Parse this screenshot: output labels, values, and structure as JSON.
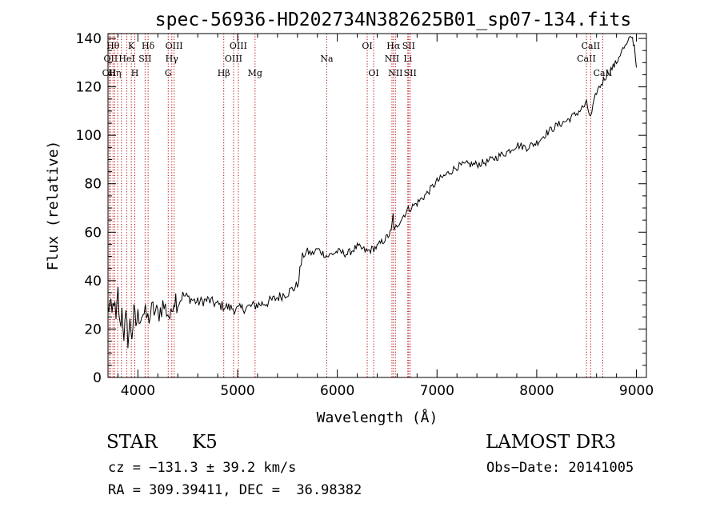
{
  "chart_data": {
    "type": "line",
    "title": "spec-56936-HD202734N382625B01_sp07-134.fits",
    "xlabel": "Wavelength (Å)",
    "ylabel": "Flux (relative)",
    "xlim": [
      3700,
      9100
    ],
    "ylim": [
      0,
      142
    ],
    "xticks": [
      4000,
      5000,
      6000,
      7000,
      8000,
      9000
    ],
    "xtick_labels": [
      "4000",
      "5000",
      "6000",
      "7000",
      "8000",
      "9000"
    ],
    "yticks": [
      0,
      20,
      40,
      60,
      80,
      100,
      120,
      140
    ],
    "ytick_labels": [
      "0",
      "20",
      "40",
      "60",
      "80",
      "100",
      "120",
      "140"
    ],
    "grid": false,
    "series": [
      {
        "color": "#000000",
        "x": [
          3700,
          3720,
          3740,
          3760,
          3780,
          3800,
          3820,
          3840,
          3860,
          3880,
          3900,
          3920,
          3940,
          3960,
          3980,
          4000,
          4050,
          4100,
          4150,
          4200,
          4250,
          4300,
          4330,
          4350,
          4380,
          4400,
          4450,
          4500,
          4600,
          4700,
          4800,
          4900,
          5000,
          5100,
          5200,
          5300,
          5400,
          5500,
          5600,
          5650,
          5700,
          5750,
          5800,
          5900,
          6000,
          6100,
          6200,
          6300,
          6400,
          6500,
          6540,
          6560,
          6570,
          6600,
          6700,
          6800,
          6900,
          7000,
          7100,
          7200,
          7300,
          7400,
          7500,
          7600,
          7700,
          7800,
          7900,
          8000,
          8100,
          8200,
          8300,
          8400,
          8500,
          8540,
          8600,
          8660,
          8700,
          8800,
          8850,
          8900,
          8950,
          8980,
          9000
        ],
        "y": [
          28,
          30,
          25,
          33,
          22,
          35,
          20,
          28,
          18,
          24,
          16,
          22,
          18,
          26,
          22,
          25,
          27,
          24,
          28,
          26,
          30,
          27,
          24,
          32,
          33,
          30,
          34,
          33,
          31,
          32,
          30,
          29,
          28,
          29,
          30,
          31,
          33,
          35,
          38,
          50,
          52,
          51,
          53,
          50,
          52,
          51,
          54,
          52,
          54,
          58,
          60,
          67,
          60,
          63,
          69,
          72,
          76,
          81,
          84,
          87,
          88,
          88,
          89,
          91,
          93,
          96,
          95,
          97,
          101,
          104,
          106,
          109,
          113,
          107,
          118,
          122,
          125,
          130,
          135,
          137,
          141,
          137,
          128
        ]
      }
    ],
    "lines": [
      {
        "x": 3712,
        "label": "OII",
        "row": 2
      },
      {
        "x": 3727,
        "label": "OII",
        "row": 1
      },
      {
        "x": 3750,
        "label": "Hθ",
        "row": 0
      },
      {
        "x": 3767,
        "label": "Hη",
        "row": 2
      },
      {
        "x": 3797,
        "label": "",
        "row": 0
      },
      {
        "x": 3835,
        "label": "",
        "row": 0
      },
      {
        "x": 3889,
        "label": "HeI",
        "row": 1
      },
      {
        "x": 3934,
        "label": "K",
        "row": 0
      },
      {
        "x": 3969,
        "label": "H",
        "row": 2
      },
      {
        "x": 4072,
        "label": "SII",
        "row": 1
      },
      {
        "x": 4102,
        "label": "Hδ",
        "row": 0
      },
      {
        "x": 4304,
        "label": "G",
        "row": 2
      },
      {
        "x": 4340,
        "label": "Hγ",
        "row": 1
      },
      {
        "x": 4363,
        "label": "OIII",
        "row": 0
      },
      {
        "x": 4861,
        "label": "Hβ",
        "row": 2
      },
      {
        "x": 4959,
        "label": "OIII",
        "row": 1
      },
      {
        "x": 5007,
        "label": "OIII",
        "row": 0
      },
      {
        "x": 5175,
        "label": "Mg",
        "row": 2
      },
      {
        "x": 5894,
        "label": "Na",
        "row": 1
      },
      {
        "x": 6300,
        "label": "OI",
        "row": 0
      },
      {
        "x": 6364,
        "label": "OI",
        "row": 2
      },
      {
        "x": 6548,
        "label": "NII",
        "row": 1
      },
      {
        "x": 6563,
        "label": "Hα",
        "row": 0
      },
      {
        "x": 6583,
        "label": "NII",
        "row": 2
      },
      {
        "x": 6707,
        "label": "Li",
        "row": 1
      },
      {
        "x": 6716,
        "label": "SII",
        "row": 0
      },
      {
        "x": 6731,
        "label": "SII",
        "row": 2
      },
      {
        "x": 8498,
        "label": "CaII",
        "row": 1
      },
      {
        "x": 8542,
        "label": "CaII",
        "row": 0
      },
      {
        "x": 8662,
        "label": "CaII",
        "row": 2
      }
    ],
    "line_color": "#b40000"
  },
  "info": {
    "class_label": "STAR",
    "subclass_label": "K5",
    "survey_label": "LAMOST DR3",
    "redshift_label": "cz = −131.3 ± 39.2 km/s",
    "obsdate_label": "Obs−Date: 20141005",
    "coords_label": "RA = 309.39411, DEC =  36.98382"
  }
}
